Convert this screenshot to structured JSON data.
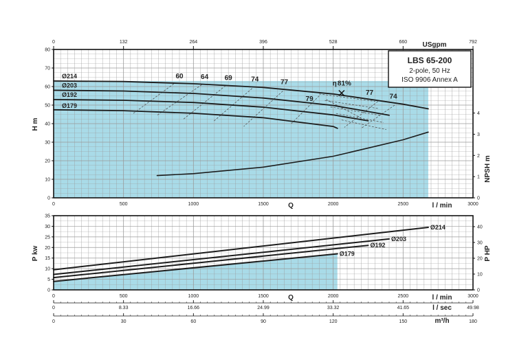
{
  "chart_data": [
    {
      "type": "line",
      "title": "LBS 65-200",
      "subtitle_lines": [
        "2-pole, 50 Hz",
        "ISO 9906 Annex A"
      ],
      "xlabel": "l / min",
      "x_axis_letter": "Q",
      "xlim": [
        0,
        3000
      ],
      "x_ticks": [
        "0",
        "500",
        "1000",
        "1500",
        "2000",
        "2500",
        "3000"
      ],
      "top_axis": {
        "label": "USgpm",
        "ticks": [
          "0",
          "132",
          "264",
          "396",
          "528",
          "660",
          "792"
        ]
      },
      "ylabel": "H m",
      "ylim": [
        0,
        80
      ],
      "y_ticks": [
        "0",
        "10",
        "20",
        "30",
        "40",
        "50",
        "60",
        "70",
        "80"
      ],
      "y2label": "NPSH m",
      "y2lim": [
        0,
        7
      ],
      "y2_ticks": [
        "0",
        "1",
        "2",
        "3",
        "4"
      ],
      "grid": true,
      "shaded_area": {
        "x_max": 2680,
        "color": "#a9dbe8"
      },
      "series": [
        {
          "name": "Ø214",
          "x": [
            0,
            500,
            1000,
            1500,
            2000,
            2500,
            2680
          ],
          "y": [
            63,
            62.7,
            61.5,
            59.5,
            56,
            50.5,
            48
          ]
        },
        {
          "name": "Ø203",
          "x": [
            0,
            500,
            1000,
            1500,
            2000,
            2400
          ],
          "y": [
            58,
            57.6,
            56.3,
            53.8,
            49.8,
            44.5
          ]
        },
        {
          "name": "Ø192",
          "x": [
            0,
            500,
            1000,
            1500,
            2000,
            2250
          ],
          "y": [
            53,
            52.6,
            51.4,
            48.9,
            44.7,
            41.5
          ]
        },
        {
          "name": "Ø179",
          "x": [
            0,
            500,
            1000,
            1500,
            2000,
            2030
          ],
          "y": [
            47.5,
            47,
            45.6,
            43.2,
            38.5,
            37.5
          ]
        },
        {
          "name": "NPSH",
          "axis": "right",
          "x": [
            740,
            1000,
            1500,
            2000,
            2500,
            2680
          ],
          "y": [
            1.05,
            1.14,
            1.45,
            1.96,
            2.74,
            3.1
          ]
        }
      ],
      "efficiency_labels": [
        "60",
        "64",
        "69",
        "74",
        "77",
        "79",
        "81%",
        "77",
        "74"
      ],
      "eta_symbol": "η"
    },
    {
      "type": "line",
      "ylabel": "P kw",
      "ylim": [
        0,
        35
      ],
      "y_ticks": [
        "0",
        "5",
        "10",
        "15",
        "20",
        "25",
        "30",
        "35"
      ],
      "y2label": "P HP",
      "y2_ticks": [
        "0",
        "10",
        "20",
        "30",
        "40"
      ],
      "xlabel": "l / min",
      "x_axis_letter": "Q",
      "xlim": [
        0,
        3000
      ],
      "x_ticks": [
        "0",
        "500",
        "1000",
        "1500",
        "2000",
        "2500",
        "3000"
      ],
      "grid": true,
      "shaded_area": {
        "x_max": 2030,
        "color": "#a9dbe8"
      },
      "series": [
        {
          "name": "Ø214",
          "x": [
            0,
            2680
          ],
          "y": [
            9.5,
            29.5
          ]
        },
        {
          "name": "Ø203",
          "x": [
            0,
            2400
          ],
          "y": [
            7.3,
            24
          ]
        },
        {
          "name": "Ø192",
          "x": [
            0,
            2250
          ],
          "y": [
            5.8,
            21
          ]
        },
        {
          "name": "Ø179",
          "x": [
            0,
            2030
          ],
          "y": [
            4,
            17
          ]
        }
      ],
      "extra_axes": [
        {
          "label": "l / sec",
          "ticks": [
            "0",
            "8.33",
            "16.66",
            "24.99",
            "33.32",
            "41.65",
            "49.98"
          ]
        },
        {
          "label": "m³/h",
          "ticks": [
            "0",
            "30",
            "60",
            "90",
            "120",
            "150",
            "180"
          ]
        }
      ]
    }
  ],
  "colors": {
    "fill": "#a9dbe8",
    "curve": "#1c1c1c",
    "grid": "#9a9a9a",
    "frame": "#111111"
  }
}
